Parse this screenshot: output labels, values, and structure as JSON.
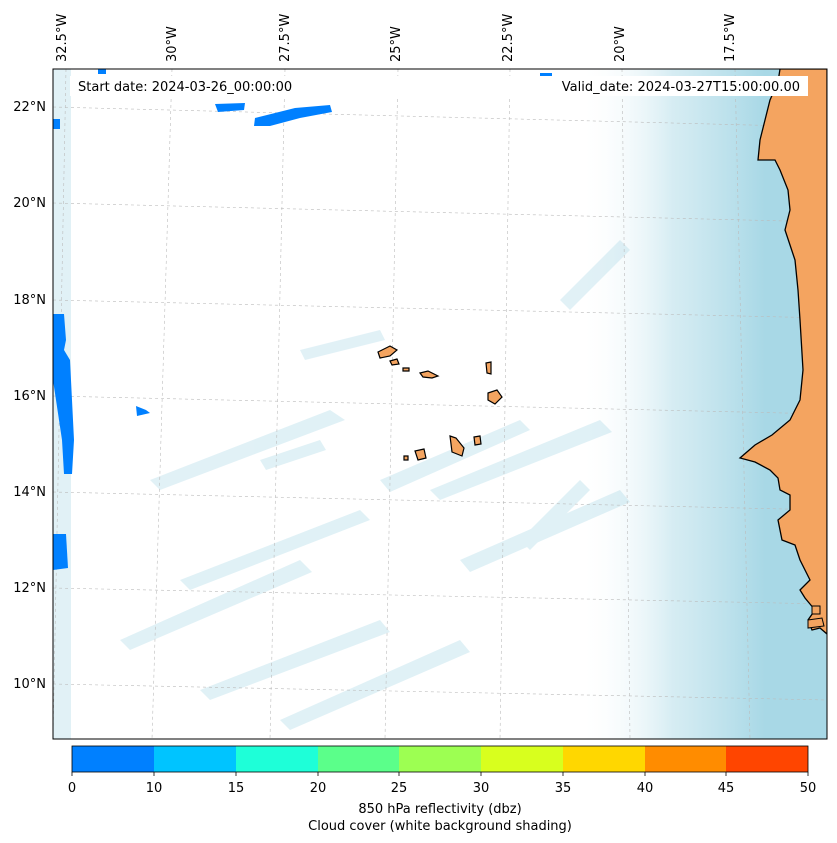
{
  "map": {
    "lon_labels": [
      "32.5°W",
      "30°W",
      "27.5°W",
      "25°W",
      "22.5°W",
      "20°W",
      "17.5°W"
    ],
    "lat_labels": [
      "22°N",
      "20°N",
      "18°N",
      "16°N",
      "14°N",
      "12°N",
      "10°N"
    ],
    "start_date": "Start date: 2024-03-26_00:00:00",
    "valid_date": "Valid_date: 2024-03-27T15:00:00.00",
    "colors": {
      "land": "#f4a460",
      "coast": "#000000",
      "cloud": "#a8d8e6",
      "reflectivity_low": "#0080ff",
      "grid": "#bbbbbb"
    }
  },
  "colorbar": {
    "ticks": [
      "0",
      "10",
      "15",
      "20",
      "25",
      "30",
      "35",
      "40",
      "45",
      "50"
    ],
    "colors": [
      "#0080ff",
      "#00c4ff",
      "#1effd8",
      "#5bff8a",
      "#9dff52",
      "#d8ff1e",
      "#ffd700",
      "#ff8c00",
      "#ff4500"
    ],
    "label": "850 hPa reflectivity (dbz)",
    "sublabel": "Cloud cover (white background shading)"
  }
}
